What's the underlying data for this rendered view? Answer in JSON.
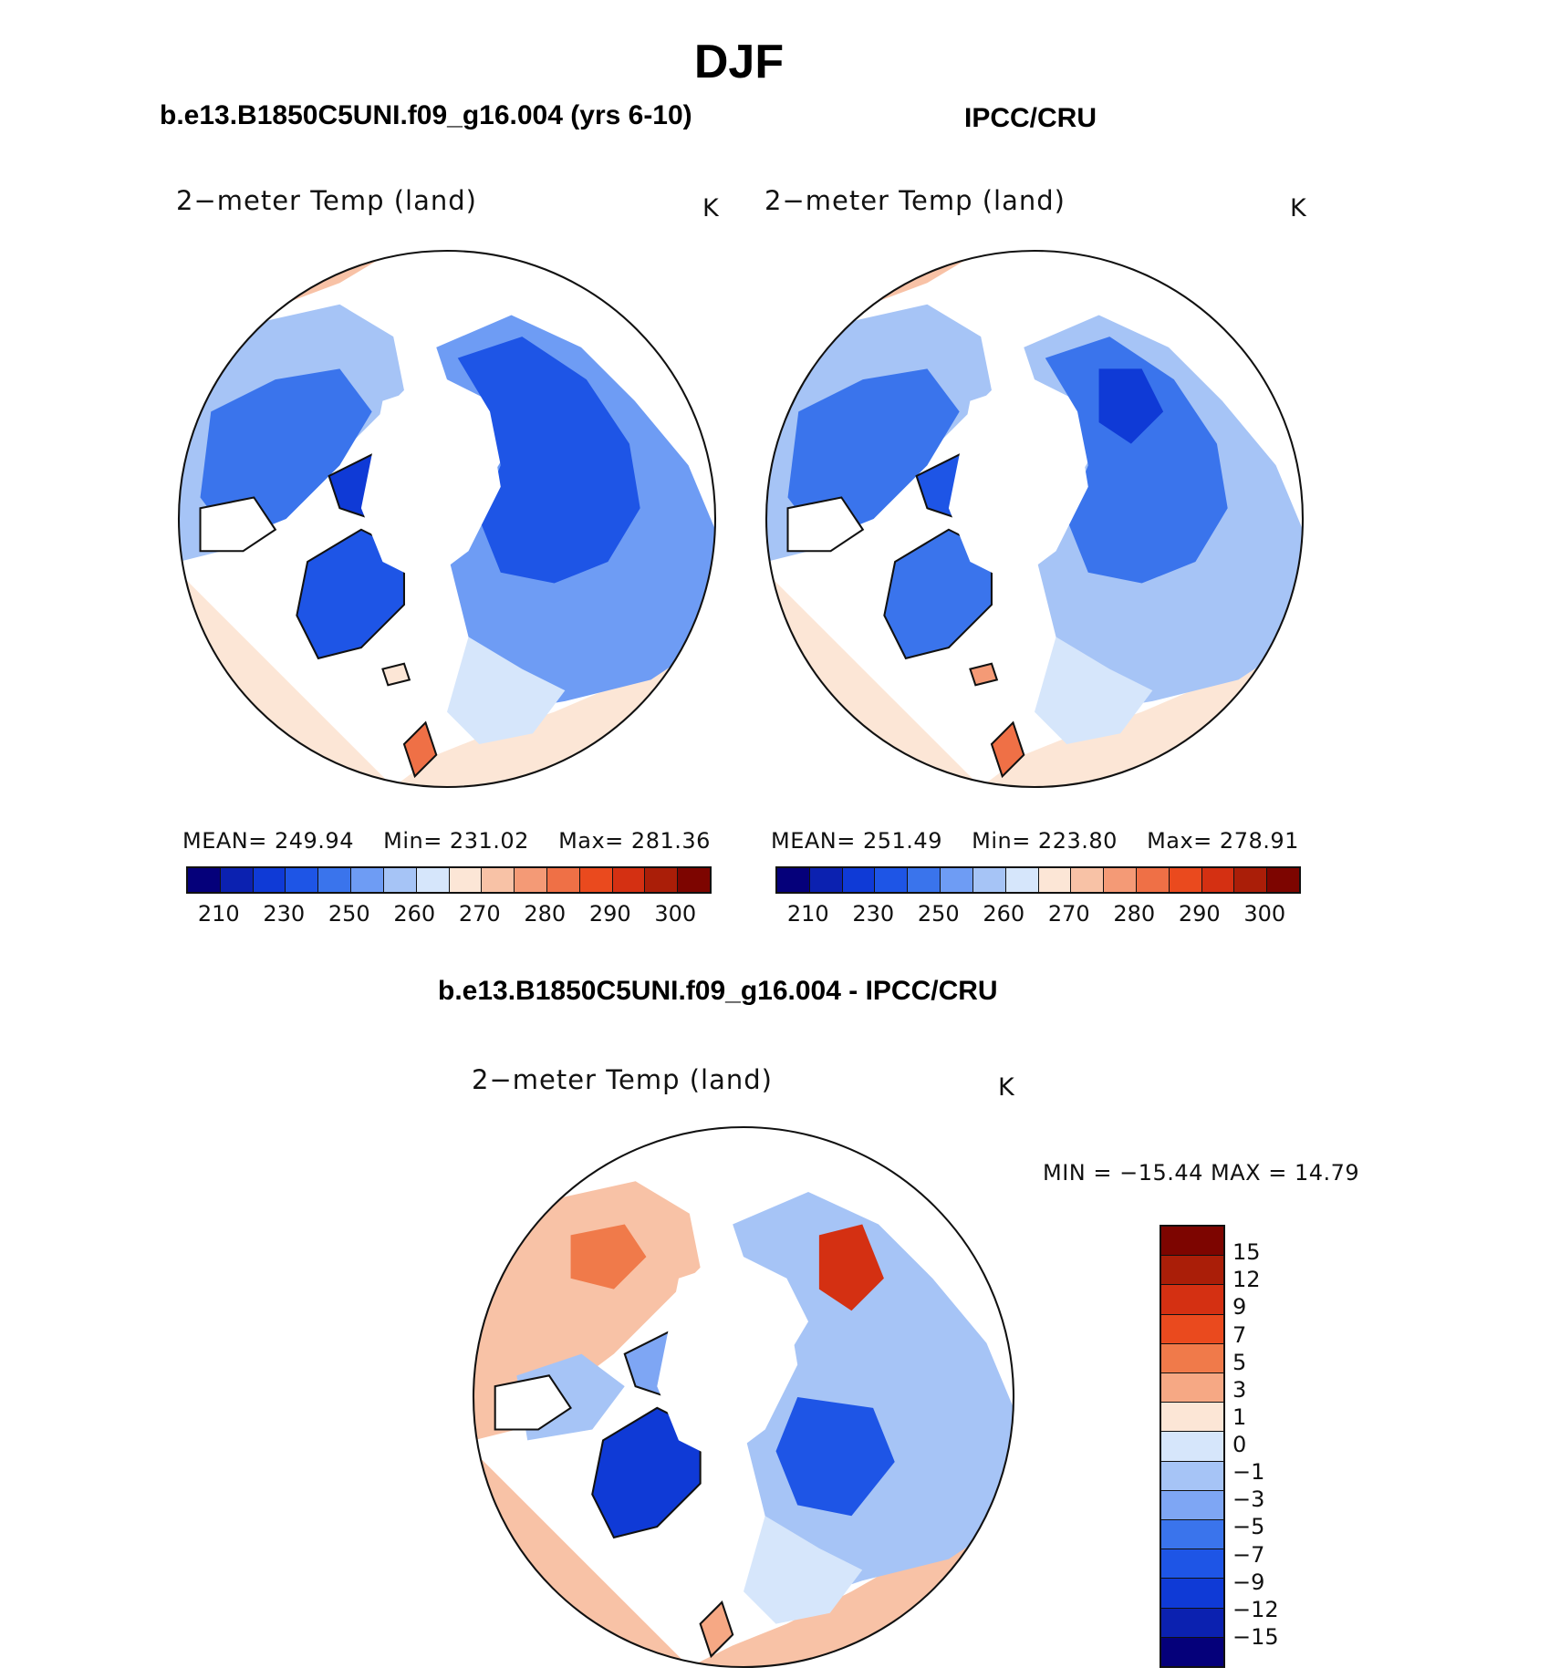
{
  "figure": {
    "title": "DJF",
    "left_panel_heading": "b.e13.B1850C5UNI.f09_g16.004 (yrs 6-10)",
    "right_panel_heading": "IPCC/CRU",
    "diff_heading": "b.e13.B1850C5UNI.f09_g16.004 - IPCC/CRU"
  },
  "panels": {
    "model": {
      "title": "2−meter Temp (land)",
      "units": "K",
      "stats": {
        "mean": "MEAN= 249.94",
        "min": "Min= 231.02",
        "max": "Max= 281.36"
      }
    },
    "obs": {
      "title": "2−meter Temp (land)",
      "units": "K",
      "stats": {
        "mean": "MEAN= 251.49",
        "min": "Min= 223.80",
        "max": "Max= 278.91"
      }
    },
    "diff": {
      "title": "2−meter Temp (land)",
      "units": "K",
      "minmax": "MIN = −15.44 MAX =   14.79"
    }
  },
  "abs_colorbar": {
    "colors": [
      "#05007a",
      "#0b21b0",
      "#0f3ad6",
      "#1e55e6",
      "#3a74ec",
      "#6e9cf4",
      "#a6c4f6",
      "#d6e6fb",
      "#fce6d6",
      "#f8c2a6",
      "#f49a76",
      "#ef7046",
      "#ea4a1e",
      "#d43012",
      "#aa1e08",
      "#7d0500"
    ],
    "ticks": [
      "210",
      "230",
      "250",
      "260",
      "270",
      "280",
      "290",
      "300"
    ]
  },
  "diff_colorbar": {
    "colors": [
      "#7d0500",
      "#aa1e08",
      "#d43012",
      "#ea4a1e",
      "#f07a4a",
      "#f6a884",
      "#fce6d6",
      "#d6e6fb",
      "#a6c4f6",
      "#7ea6f4",
      "#3a74ec",
      "#1e55e6",
      "#0f3ad6",
      "#0b21b0",
      "#05007a"
    ],
    "ticks": [
      "15",
      "12",
      "9",
      "7",
      "5",
      "3",
      "1",
      "0",
      "−1",
      "−3",
      "−5",
      "−7",
      "−9",
      "−12",
      "−15"
    ]
  }
}
